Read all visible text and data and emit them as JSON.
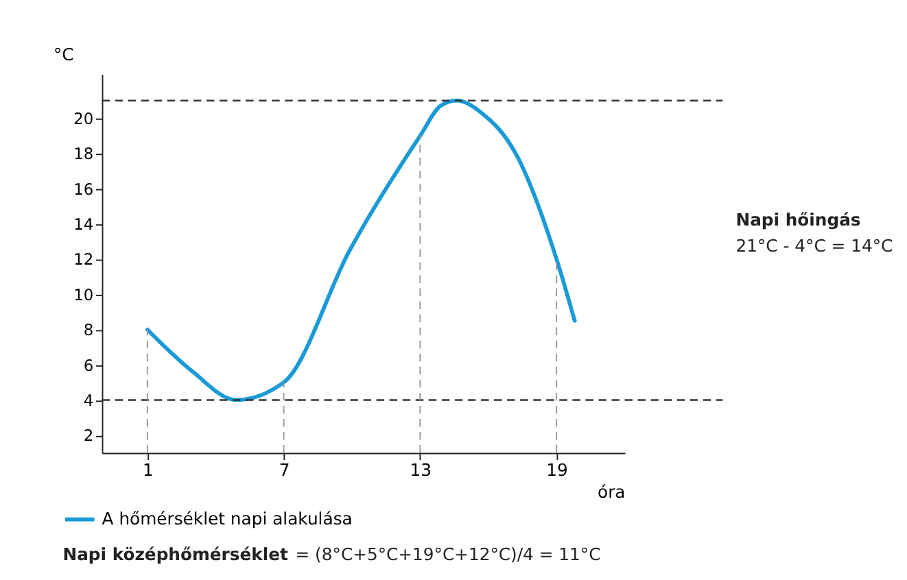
{
  "chart_data": {
    "type": "line",
    "xlabel": "óra",
    "ylabel": "°C",
    "xlim": [
      -1,
      22
    ],
    "xticks": [
      1,
      7,
      13,
      19
    ],
    "ylim": [
      1,
      22.5
    ],
    "yticks": [
      2,
      4,
      6,
      8,
      10,
      12,
      14,
      16,
      18,
      20
    ],
    "series": [
      {
        "name": "A hőmérséklet napi alakulása",
        "color": "#1a9ad6",
        "x": [
          1,
          3,
          4.9,
          7,
          9.9,
          13,
          13.9,
          14.6,
          15.7,
          17.2,
          19,
          19.8
        ],
        "values": [
          8,
          5.6,
          4,
          5,
          12.5,
          19,
          20.7,
          21,
          20.3,
          18,
          12,
          8.5
        ]
      }
    ],
    "ref_lines": [
      {
        "axis": "y",
        "value": 21,
        "line_style": "dashed",
        "color": "#333333"
      },
      {
        "axis": "y",
        "value": 4,
        "line_style": "dashed",
        "color": "#333333"
      },
      {
        "axis": "x",
        "value": 1,
        "line_style": "dashed",
        "color": "#999999"
      },
      {
        "axis": "x",
        "value": 7,
        "line_style": "dashed",
        "color": "#999999"
      },
      {
        "axis": "x",
        "value": 13,
        "line_style": "dashed",
        "color": "#999999"
      },
      {
        "axis": "x",
        "value": 19,
        "line_style": "dashed",
        "color": "#999999"
      }
    ],
    "annotations": [
      "Napi hőingás",
      "21°C - 4°C = 14°C",
      "Napi középhőmérséklet",
      "= (8°C+5°C+19°C+12°C)/4 = 11°C"
    ],
    "legend": "bottom left",
    "marker": "none",
    "line_style": "solid",
    "grid": false
  }
}
